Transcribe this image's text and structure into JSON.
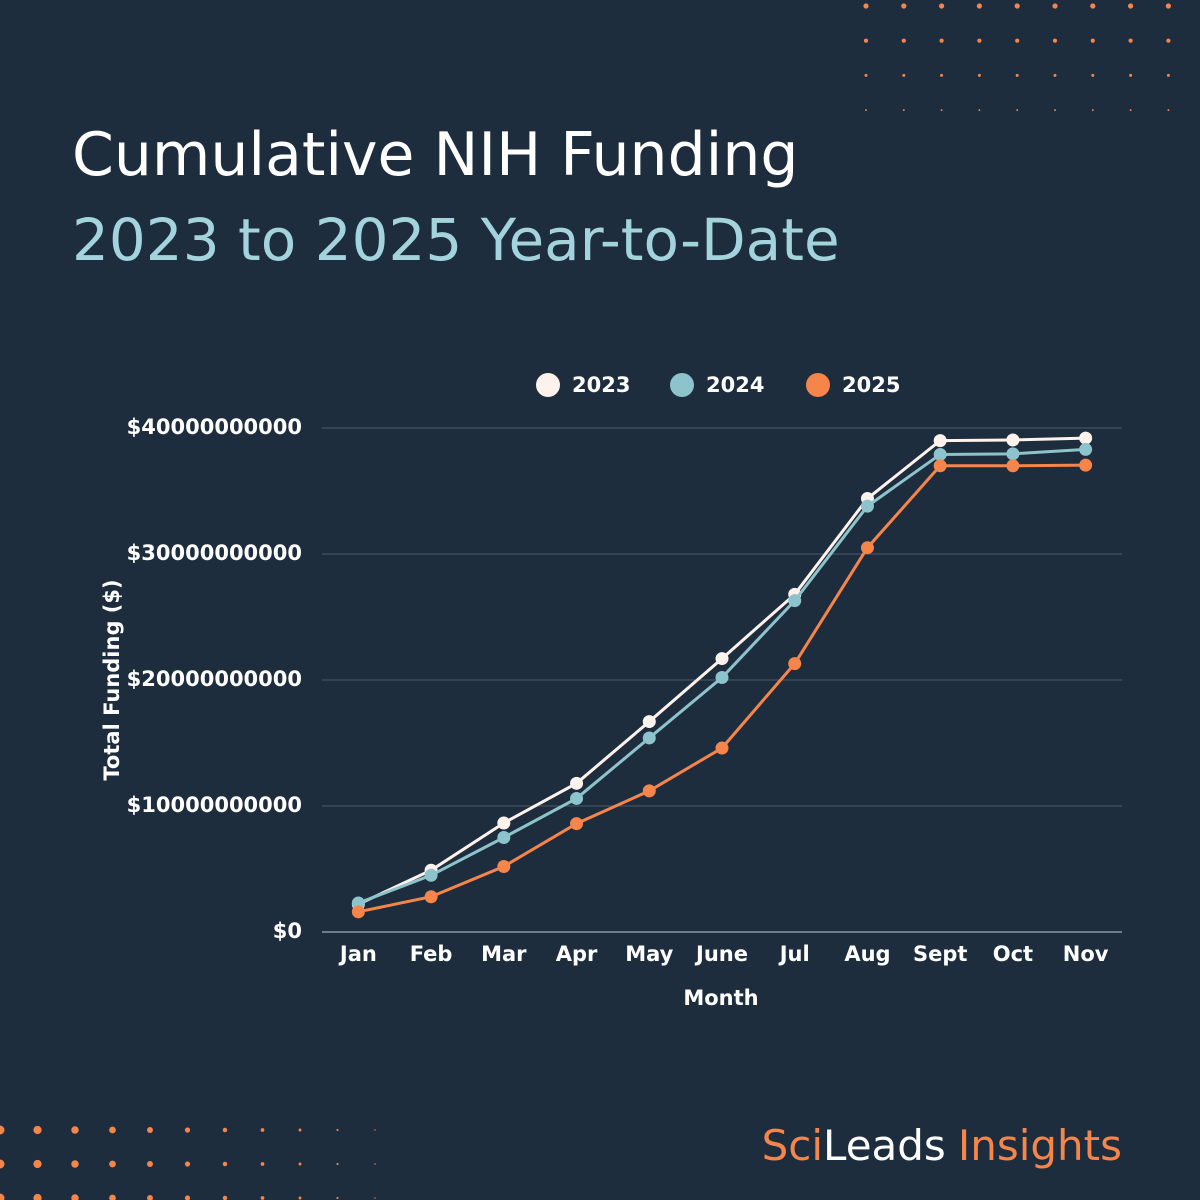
{
  "chart_data": {
    "type": "line",
    "title": "Cumulative NIH Funding",
    "subtitle": "2023 to 2025 Year-to-Date",
    "x_label": "Month",
    "y_label": "Total Funding ($)",
    "categories": [
      "Jan",
      "Feb",
      "Mar",
      "Apr",
      "May",
      "June",
      "Jul",
      "Aug",
      "Sept",
      "Oct",
      "Nov"
    ],
    "series": [
      {
        "name": "2023",
        "color": "#fdf3ec",
        "values": [
          2200000000,
          4900000000,
          8650000000,
          11800000000,
          16700000000,
          21700000000,
          26800000000,
          34400000000,
          39000000000,
          39050000000,
          39200000000
        ]
      },
      {
        "name": "2024",
        "color": "#8cc3cc",
        "values": [
          2300000000,
          4500000000,
          7500000000,
          10600000000,
          15400000000,
          20200000000,
          26300000000,
          33800000000,
          37900000000,
          37950000000,
          38300000000
        ]
      },
      {
        "name": "2025",
        "color": "#f5854a",
        "values": [
          1600000000,
          2800000000,
          5200000000,
          8600000000,
          11200000000,
          14600000000,
          21300000000,
          30500000000,
          37000000000,
          37000000000,
          37050000000
        ]
      }
    ],
    "ylim": [
      0,
      40000000000
    ],
    "yticks": [
      {
        "value": 0,
        "label": "$0"
      },
      {
        "value": 10000000000,
        "label": "$10000000000"
      },
      {
        "value": 20000000000,
        "label": "$20000000000"
      },
      {
        "value": 30000000000,
        "label": "$30000000000"
      },
      {
        "value": 40000000000,
        "label": "$40000000000"
      }
    ],
    "grid": true,
    "legend": "top"
  },
  "brand": {
    "first": "Sci",
    "second": "Leads",
    "third": "Insights"
  }
}
